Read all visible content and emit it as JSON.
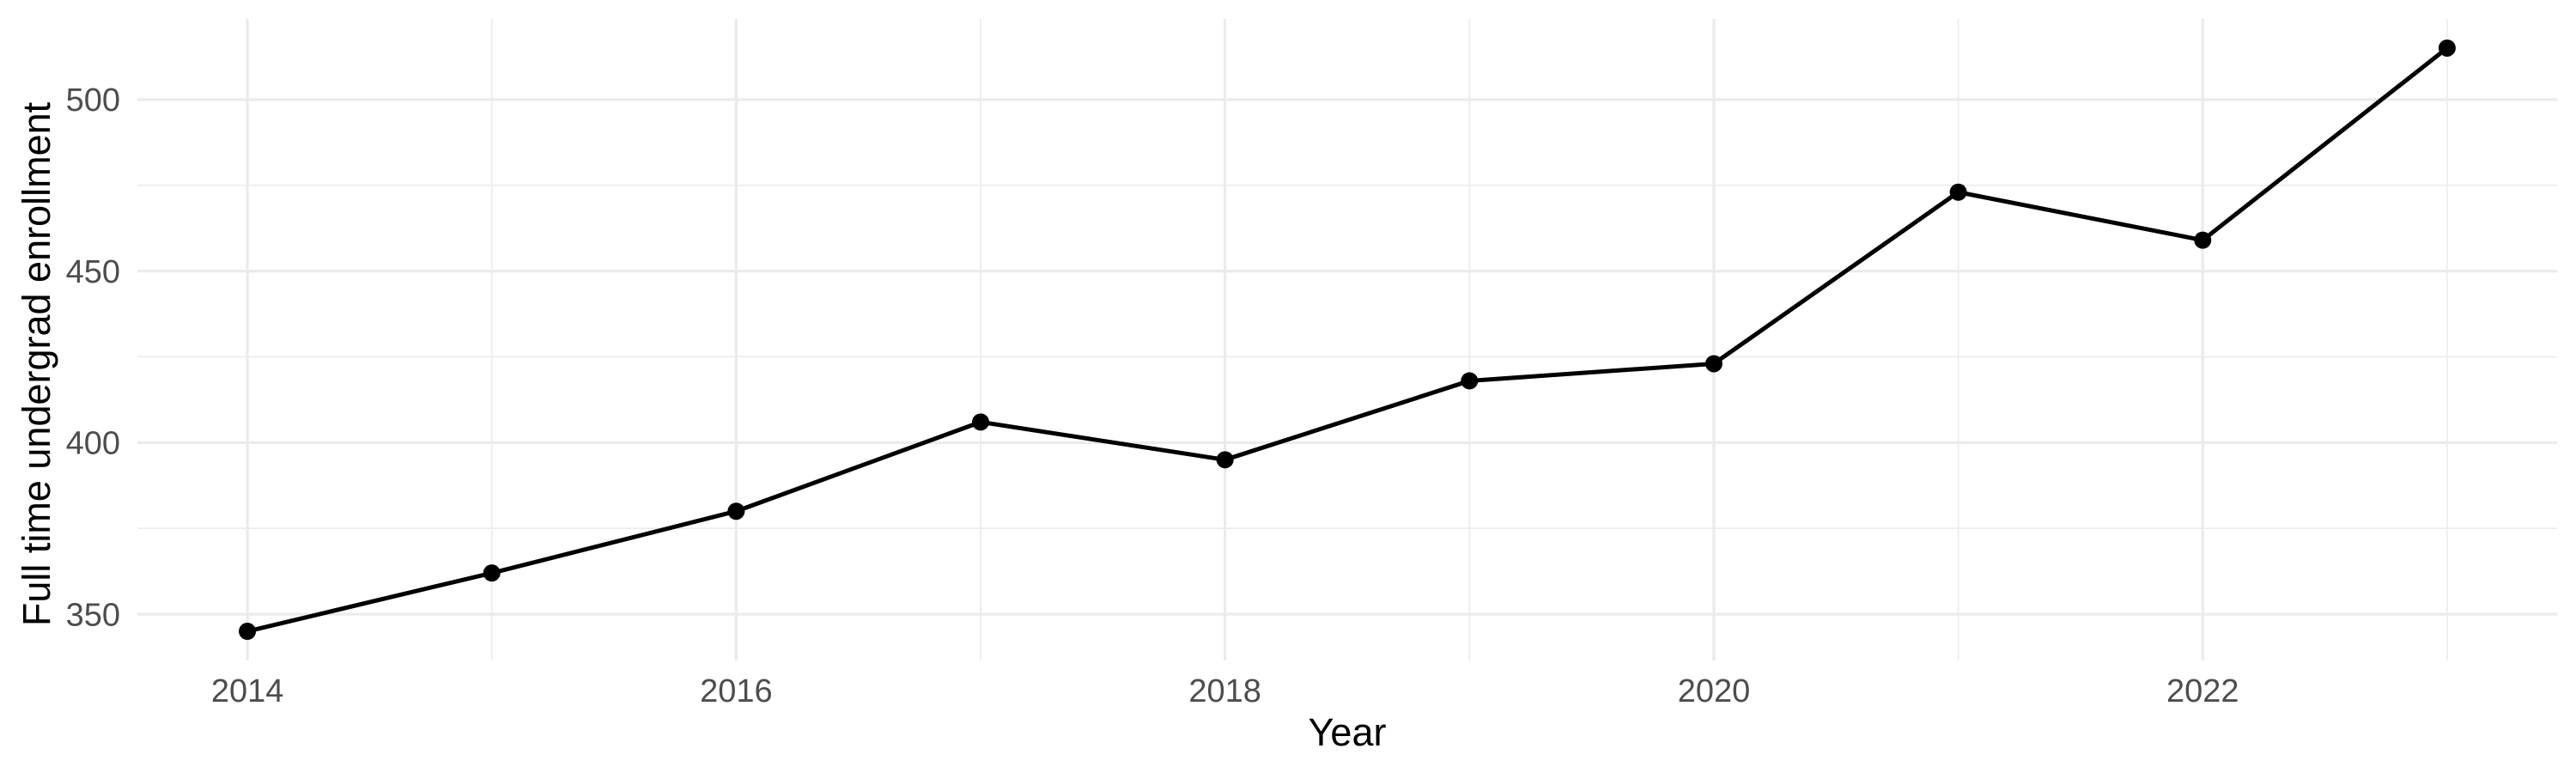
{
  "chart_data": {
    "type": "line",
    "title": "",
    "xlabel": "Year",
    "ylabel": "Full time undergrad enrollment",
    "x": [
      2014,
      2015,
      2016,
      2017,
      2018,
      2019,
      2020,
      2021,
      2022,
      2023
    ],
    "series": [
      {
        "name": "Full time undergrad enrollment",
        "values": [
          345,
          362,
          380,
          406,
          395,
          418,
          423,
          473,
          459,
          515
        ]
      }
    ],
    "xlim": [
      2013.55,
      2023.45
    ],
    "ylim": [
      336.5,
      523.5
    ],
    "x_major_ticks": [
      2014,
      2016,
      2018,
      2020,
      2022
    ],
    "x_tick_labels": [
      "2014",
      "2016",
      "2018",
      "2020",
      "2022"
    ],
    "x_minor_ticks": [
      2015,
      2017,
      2019,
      2021,
      2023
    ],
    "y_major_ticks": [
      350,
      400,
      450,
      500
    ],
    "y_tick_labels": [
      "350",
      "400",
      "450",
      "500"
    ],
    "y_minor_ticks": [
      375,
      425,
      475
    ],
    "grid": true,
    "legend_position": "none",
    "style": {
      "background_color": "#FFFFFF",
      "grid_color": "#EBEBEB",
      "line_color": "#000000",
      "point_color": "#000000",
      "point_radius": 10,
      "tick_label_color": "#4D4D4D",
      "axis_title_color": "#000000"
    }
  }
}
